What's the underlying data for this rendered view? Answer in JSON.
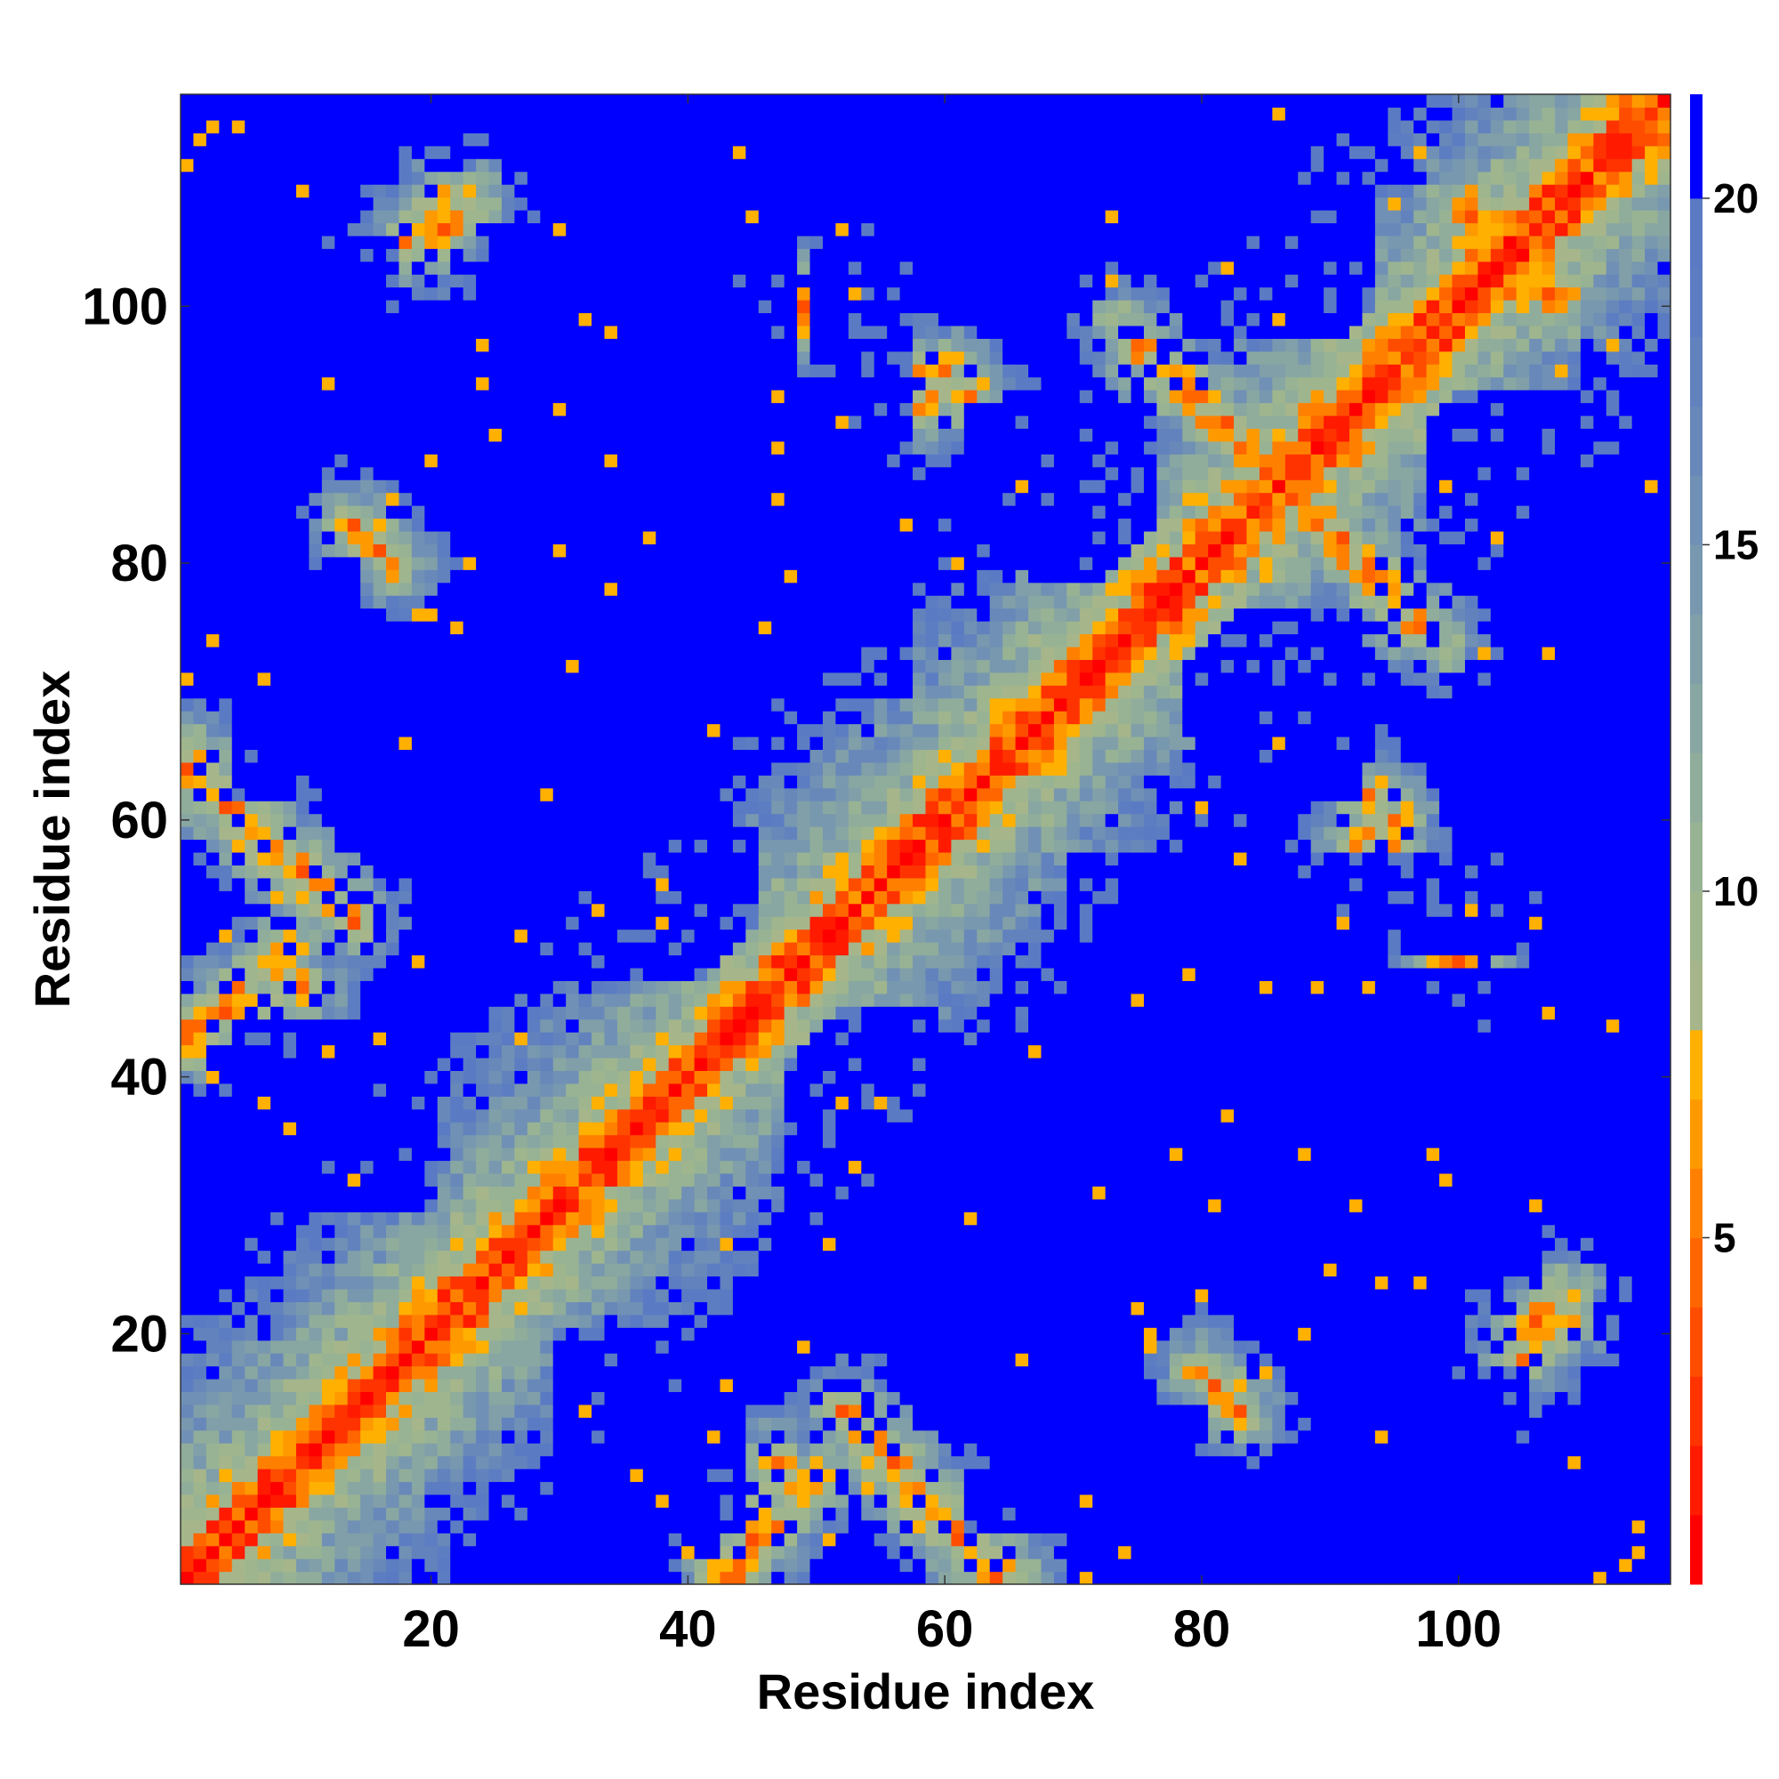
{
  "chart_data": {
    "type": "heatmap",
    "title": "",
    "xlabel": "Residue index",
    "ylabel": "Residue index",
    "n_residues": 116,
    "xlim": [
      0.5,
      116.5
    ],
    "ylim": [
      0.5,
      116.5
    ],
    "x_ticks": [
      20,
      40,
      60,
      80,
      100
    ],
    "y_ticks": [
      20,
      40,
      60,
      80,
      100
    ],
    "colorbar": {
      "ticks": [
        5,
        10,
        15,
        20
      ],
      "range": [
        0,
        21.5
      ],
      "levels": [
        {
          "max": 1,
          "color": "#ff0000"
        },
        {
          "max": 2,
          "color": "#ff1a00"
        },
        {
          "max": 3,
          "color": "#ff3300"
        },
        {
          "max": 4,
          "color": "#ff4d00"
        },
        {
          "max": 5,
          "color": "#ff6600"
        },
        {
          "max": 6,
          "color": "#ff8000"
        },
        {
          "max": 7,
          "color": "#ff9900"
        },
        {
          "max": 8,
          "color": "#ffb000"
        },
        {
          "max": 9,
          "color": "#a6b68a"
        },
        {
          "max": 10,
          "color": "#9fb58e"
        },
        {
          "max": 11,
          "color": "#98b394"
        },
        {
          "max": 12,
          "color": "#90ad9b"
        },
        {
          "max": 13,
          "color": "#88a6a2"
        },
        {
          "max": 14,
          "color": "#809fa9"
        },
        {
          "max": 15,
          "color": "#7898af"
        },
        {
          "max": 16,
          "color": "#7090b5"
        },
        {
          "max": 17,
          "color": "#6888ba"
        },
        {
          "max": 18,
          "color": "#6282be"
        },
        {
          "max": 19,
          "color": "#5c7dc2"
        },
        {
          "max": 20,
          "color": "#5a7bc3"
        },
        {
          "max": 21.5,
          "color": "#0000ff"
        }
      ]
    },
    "structure": {
      "diagonal_band": "distance increases away from the diagonal; main diagonal < 4",
      "contact_segments": [
        {
          "i_start": 1,
          "i_end": 14,
          "j_start": 65,
          "j_end": 52
        },
        {
          "i_start": 1,
          "j_start": 44,
          "i_end": 10,
          "j_end": 47
        },
        {
          "i_start": 55,
          "i_end": 64,
          "j_start": 10,
          "j_end": 1
        },
        {
          "i_start": 43,
          "i_end": 50,
          "j_start": 1,
          "j_end": 9
        },
        {
          "i_start": 65,
          "i_end": 76,
          "j_start": 67,
          "j_end": 73
        },
        {
          "i_start": 74,
          "i_end": 84,
          "j_start": 98,
          "j_end": 89
        },
        {
          "i_start": 86,
          "i_end": 96,
          "j_start": 86,
          "j_end": 76
        },
        {
          "i_start": 101,
          "i_end": 108,
          "j_start": 108,
          "j_end": 100
        },
        {
          "i_start": 60,
          "i_end": 58,
          "j_start": 95,
          "j_end": 92
        },
        {
          "i_start": 17,
          "i_end": 21,
          "j_start": 104,
          "j_end": 108
        },
        {
          "i_start": 93,
          "i_end": 95,
          "j_start": 62,
          "j_end": 58
        },
        {
          "i_start": 99,
          "i_end": 103,
          "j_start": 48,
          "j_end": 52
        },
        {
          "i_start": 105,
          "i_end": 108,
          "j_start": 20,
          "j_end": 23
        },
        {
          "i_start": 80,
          "i_end": 83,
          "j_start": 17,
          "j_end": 14
        }
      ],
      "far_regions": [
        {
          "x": [
            5,
            17
          ],
          "y": [
            30,
            44
          ]
        },
        {
          "x": [
            30,
            42
          ],
          "y": [
            3,
            20
          ]
        },
        {
          "x": [
            35,
            45
          ],
          "y": [
            50,
            59
          ]
        },
        {
          "x": [
            48,
            58
          ],
          "y": [
            30,
            44
          ]
        },
        {
          "x": [
            22,
            47
          ],
          "y": [
            73,
            93
          ]
        },
        {
          "x": [
            7,
            17
          ],
          "y": [
            98,
            105
          ]
        },
        {
          "x": [
            33,
            43
          ],
          "y": [
            100,
            108
          ]
        },
        {
          "x": [
            50,
            57
          ],
          "y": [
            70,
            116
          ]
        },
        {
          "x": [
            62,
            76
          ],
          "y": [
            80,
            92
          ]
        },
        {
          "x": [
            79,
            90
          ],
          "y": [
            67,
            76
          ]
        },
        {
          "x": [
            85,
            106
          ],
          "y": [
            25,
            48
          ]
        },
        {
          "x": [
            78,
            92
          ],
          "y": [
            100,
            116
          ]
        },
        {
          "x": [
            98,
            116
          ],
          "y": [
            80,
            93
          ]
        },
        {
          "x": [
            62,
            80
          ],
          "y": [
            5,
            14
          ]
        },
        {
          "x": [
            95,
            103
          ],
          "y": [
            5,
            15
          ]
        },
        {
          "x": [
            103,
            116
          ],
          "y": [
            50,
            58
          ]
        },
        {
          "x": [
            8,
            14
          ],
          "y": [
            65,
            80
          ]
        }
      ]
    }
  }
}
